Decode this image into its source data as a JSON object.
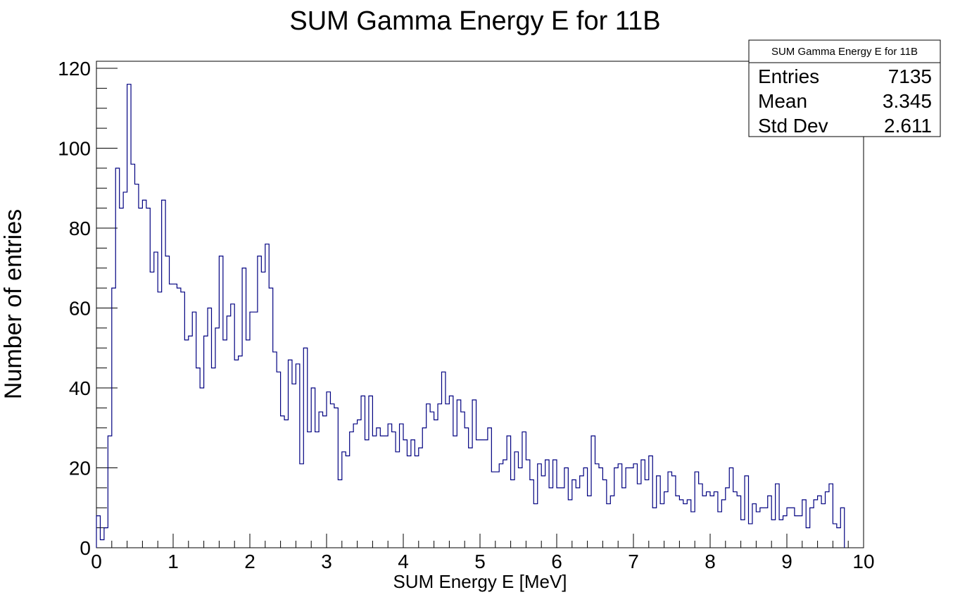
{
  "chart_data": {
    "type": "histogram",
    "title": "SUM Gamma Energy E for 11B",
    "xlabel": "SUM Energy E [MeV]",
    "ylabel": "Number of entries",
    "xlim": [
      0,
      10
    ],
    "ylim": [
      0,
      120
    ],
    "x_ticks": [
      0,
      1,
      2,
      3,
      4,
      5,
      6,
      7,
      8,
      9,
      10
    ],
    "y_ticks": [
      0,
      20,
      40,
      60,
      80,
      100,
      120
    ],
    "bin_width": 0.05,
    "line_color": "#000080",
    "grid": false,
    "values": [
      8,
      2,
      5,
      28,
      65,
      95,
      85,
      89,
      116,
      96,
      91,
      85,
      87,
      85,
      69,
      74,
      64,
      87,
      73,
      66,
      66,
      65,
      64,
      52,
      53,
      59,
      45,
      40,
      53,
      60,
      45,
      55,
      73,
      52,
      58,
      61,
      47,
      48,
      70,
      52,
      59,
      59,
      73,
      69,
      76,
      65,
      49,
      44,
      33,
      32,
      47,
      41,
      46,
      21,
      50,
      29,
      40,
      29,
      34,
      33,
      39,
      36,
      35,
      17,
      24,
      23,
      29,
      31,
      32,
      38,
      27,
      38,
      28,
      30,
      28,
      28,
      31,
      29,
      24,
      31,
      27,
      23,
      27,
      23,
      25,
      30,
      36,
      34,
      32,
      36,
      44,
      36,
      38,
      28,
      37,
      34,
      30,
      25,
      37,
      27,
      27,
      27,
      30,
      19,
      19,
      21,
      22,
      28,
      17,
      24,
      20,
      29,
      22,
      17,
      11,
      21,
      18,
      22,
      15,
      22,
      15,
      15,
      20,
      12,
      17,
      15,
      18,
      20,
      13,
      28,
      21,
      20,
      17,
      11,
      13,
      20,
      21,
      15,
      20,
      20,
      21,
      16,
      22,
      17,
      23,
      10,
      18,
      11,
      14,
      19,
      18,
      13,
      12,
      11,
      12,
      9,
      19,
      16,
      13,
      14,
      13,
      14,
      9,
      12,
      15,
      20,
      14,
      13,
      7,
      18,
      6,
      11,
      9,
      10,
      10,
      13,
      7,
      16,
      7,
      8,
      10,
      10,
      8,
      8,
      12,
      5,
      10,
      12,
      13,
      11,
      14,
      16,
      6,
      5,
      10
    ]
  },
  "stats_box": {
    "title": "SUM Gamma Energy E for 11B",
    "rows": [
      {
        "label": "Entries",
        "value": "7135"
      },
      {
        "label": "Mean",
        "value": "3.345"
      },
      {
        "label": "Std Dev",
        "value": "2.611"
      }
    ]
  }
}
